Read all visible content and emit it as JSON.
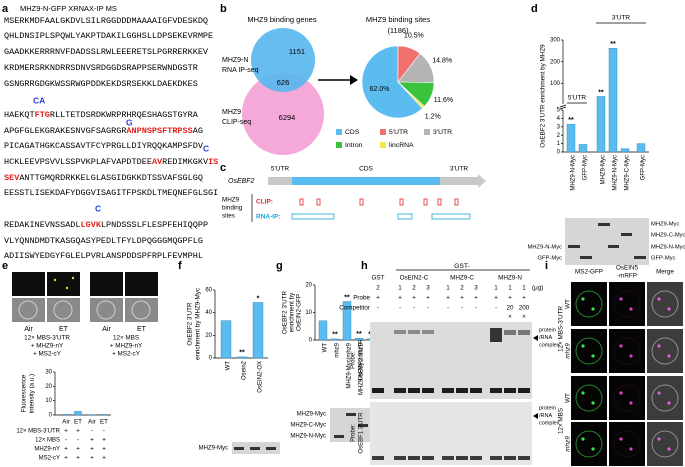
{
  "labels": [
    "a",
    "b",
    "c",
    "d",
    "e",
    "f",
    "g",
    "h",
    "i"
  ],
  "sequence": {
    "title": "MHZ9-N-GFP XRNAX-IP MS",
    "lines": [
      [
        "MSERKMDFAALGKDVLSILRGGDDDMAAAAIGFVDESKDQ"
      ],
      [
        "QHLDNSIPLSPQWLYAKPTDAKILGGHSLLDPSEKEVRMPE"
      ],
      [
        "GAADKKERRRNVFDADSSLRWLEEERETSLPGRRERKKEV"
      ],
      [
        "KRDMERSRKNDRRSDNVSRDGGDSRAPPSERWNDGSTR"
      ],
      [
        "GSNGRRGDGKWSSRWGPDDKEKDSRSEKKLDAEKDKES"
      ],
      [
        "HAEKQT",
        {
          "text": "FTG",
          "color": "#e3231f"
        },
        "RLLTETDSRDKWRPRHRQESHAGSTGYRA"
      ],
      [
        "APGFGLEKGRAKESNVGFSAGRGR",
        {
          "text": "ANPNSPSFTRPSS",
          "color": "#e3231f"
        },
        "AG"
      ],
      [
        "PICAGATHGKCASSAVTFCYPRGLLDIYRQQKAMPSFDV"
      ],
      [
        "HCKLEEVPSVVLSSPVKPLAFVAPDTDEE",
        {
          "text": "AV",
          "color": "#e3231f"
        },
        "REDIMKGKV",
        {
          "text": "IS",
          "color": "#e3231f"
        }
      ],
      [
        {
          "text": "SEV",
          "color": "#e3231f"
        },
        "ANTTGMQRDRKKELGLASGIDGKKDTSSVAFSGLGQ"
      ],
      [
        "EESSTLISEKDAFYDGGVISAGITFPSKDLTMEQNEFGLSGI"
      ],
      [
        "REDAKINEVNSSADL",
        {
          "text": "LGVK",
          "color": "#e3231f"
        },
        "LPNDSSSLFLESPFEHIQQPP"
      ],
      [
        "VLYQNNDMDTKASGQASYPEDLTFYLDPQGGGMQGPFLG"
      ],
      [
        "ADIISWYEDGYFGLELPVRLANSPDDSPFRPLFEVMPHL"
      ]
    ],
    "marks": [
      "CA",
      "G",
      "C",
      "C"
    ]
  },
  "venn": {
    "title": "MHZ9 binding genes",
    "set_a": [
      "MHZ9-N",
      "RNA IP-seq"
    ],
    "set_b": [
      "MHZ9",
      "CLIP-seq"
    ],
    "only_a": 1151,
    "both": 626,
    "only_b": 6294
  },
  "gene": {
    "name": "OsEBF2",
    "regions": [
      "5'UTR",
      "CDS",
      "3'UTR"
    ],
    "track_title": [
      "MHZ9",
      "binding",
      "sites"
    ],
    "tracks": [
      "CLIP:",
      "RNA-IP:"
    ]
  },
  "blot_d": {
    "left": [
      "MHZ9-N-Myc",
      "GFP-Myc"
    ],
    "right": [
      "MHZ9-Myc",
      "MHZ9-C-Myc",
      "MHZ9-N-Myc",
      "GFP-Myc"
    ]
  },
  "panel_e": {
    "conditions": [
      "Air",
      "ET",
      "Air",
      "ET"
    ],
    "constructs": [
      [
        "12× MBS-3'UTR",
        "+ MHZ9-nY",
        "+ MS2-cY"
      ],
      [
        "12× MBS",
        "+ MHZ9-nY",
        "+ MS2-cY"
      ]
    ],
    "table": [
      [
        "12× MBS-3'UTR",
        "+",
        "+",
        "-",
        "-"
      ],
      [
        "12× MBS",
        "-",
        "-",
        "+",
        "+"
      ],
      [
        "MHZ9-nY",
        "+",
        "+",
        "+",
        "+"
      ],
      [
        "MS2-cY",
        "+",
        "+",
        "+",
        "+"
      ]
    ]
  },
  "blot_f": [
    "MHZ9-Myc"
  ],
  "blot_g": [
    "MHZ9-Myc",
    "MHZ9-C-Myc",
    "MHZ9-N-Myc"
  ],
  "gel": {
    "group": "GST-",
    "proteins": [
      "GST",
      "OsEIN2-C",
      "MHZ9-C",
      "MHZ9-N"
    ],
    "amounts": [
      2,
      1,
      2,
      3,
      1,
      2,
      3,
      1,
      1,
      1
    ],
    "unit": "(μg)",
    "probe_label": "Probe",
    "probe": [
      "+",
      "+",
      "+",
      "+",
      "+",
      "+",
      "+",
      "+",
      "+",
      "+"
    ],
    "competitor_label": "Competitor",
    "competitor": [
      "-",
      "-",
      "-",
      "-",
      "-",
      "-",
      "-",
      "-",
      20,
      200
    ],
    "competitor_marks": [
      "×",
      "×"
    ],
    "probes": [
      [
        "Probe:",
        "OsEBF2 3'UTR"
      ],
      [
        "Probe:",
        "OsEBF1 3'UTR"
      ]
    ],
    "complex": [
      [
        "protein",
        "/RNA",
        "complex"
      ],
      [
        "protein",
        "/RNA",
        "complex"
      ]
    ]
  },
  "imaging": {
    "columns": [
      [
        "MS2-GFP"
      ],
      [
        "OsEIN5",
        "-mRFP"
      ],
      [
        "Merge"
      ]
    ],
    "rows": [
      "WT",
      "mhz9",
      "WT",
      "mhz9"
    ],
    "groups": [
      "12× MBS-3'UTR",
      "12× MBS"
    ]
  },
  "chart_data": [
    {
      "type": "pie",
      "title": "MHZ9 binding sites",
      "subtitle": "(1186)",
      "categories": [
        "CDS",
        "5'UTR",
        "3'UTR",
        "Intron",
        "lincRNA"
      ],
      "values": [
        62.0,
        10.5,
        14.8,
        11.6,
        1.2
      ],
      "value_labels": [
        "62.0%",
        "10.5%",
        "14.8%",
        "11.6%",
        "1.2%"
      ],
      "colors": [
        "#5bbcf0",
        "#f07070",
        "#b4b4b4",
        "#3cc23c",
        "#f2e84a"
      ]
    },
    {
      "type": "bar",
      "y_label": [
        "OsEBF2 3'UTR enrichment by MHZ9"
      ],
      "categories": [
        "MHZ9-N-Myc",
        "GFP-Myc",
        "MHZ9-Myc",
        "MHZ9-N-Myc",
        "MHZ9-C-Myc",
        "GFP-Myc"
      ],
      "values": [
        3.3,
        0.9,
        40,
        262,
        0.4,
        1.0
      ],
      "color": "#5bbcf0",
      "ylim": [
        0,
        300
      ],
      "yticks": [
        0,
        1,
        2,
        3,
        4,
        5,
        100,
        200,
        300
      ],
      "ybreak": 5,
      "groups": [
        "5'UTR",
        "3'UTR"
      ],
      "significance": [
        "**",
        null,
        "**",
        "**",
        null,
        null
      ]
    },
    {
      "type": "bar",
      "y_label": [
        "Fluorescence",
        "intensity (a.u.)"
      ],
      "categories": [
        "Air",
        "ET",
        "Air",
        "ET"
      ],
      "values": [
        0.5,
        2.5,
        0.3,
        0.4
      ],
      "color": "#5bbcf0",
      "ylim": [
        0,
        30
      ],
      "yticks": [
        0,
        10,
        20,
        30
      ]
    },
    {
      "type": "bar",
      "y_label": [
        "OsEBF2 3'UTR",
        "enrichment by MHZ9-Myc"
      ],
      "categories": [
        "WT",
        "Osein2",
        "OsEIN2-OX"
      ],
      "values": [
        33,
        1,
        49
      ],
      "color": "#5bbcf0",
      "ylim": [
        0,
        60
      ],
      "yticks": [
        0,
        20,
        40,
        60
      ],
      "significance": [
        null,
        "**",
        "*"
      ]
    },
    {
      "type": "bar",
      "y_label": [
        "OsEBF2 3'UTR",
        "enrichment by",
        "OsEIN2-GFP"
      ],
      "categories": [
        "WT",
        "mhz9",
        "MHZ9-Myc/mhz9",
        "MHZ9-N-Myc/mhz9",
        "MHZ9-C-Myc/mhz9"
      ],
      "values": [
        7,
        0.4,
        14,
        0.6,
        0.5
      ],
      "color": "#5bbcf0",
      "ylim": [
        0,
        20
      ],
      "yticks": [
        0,
        10,
        20
      ],
      "significance": [
        null,
        "**",
        "**",
        "**",
        "**"
      ]
    }
  ]
}
